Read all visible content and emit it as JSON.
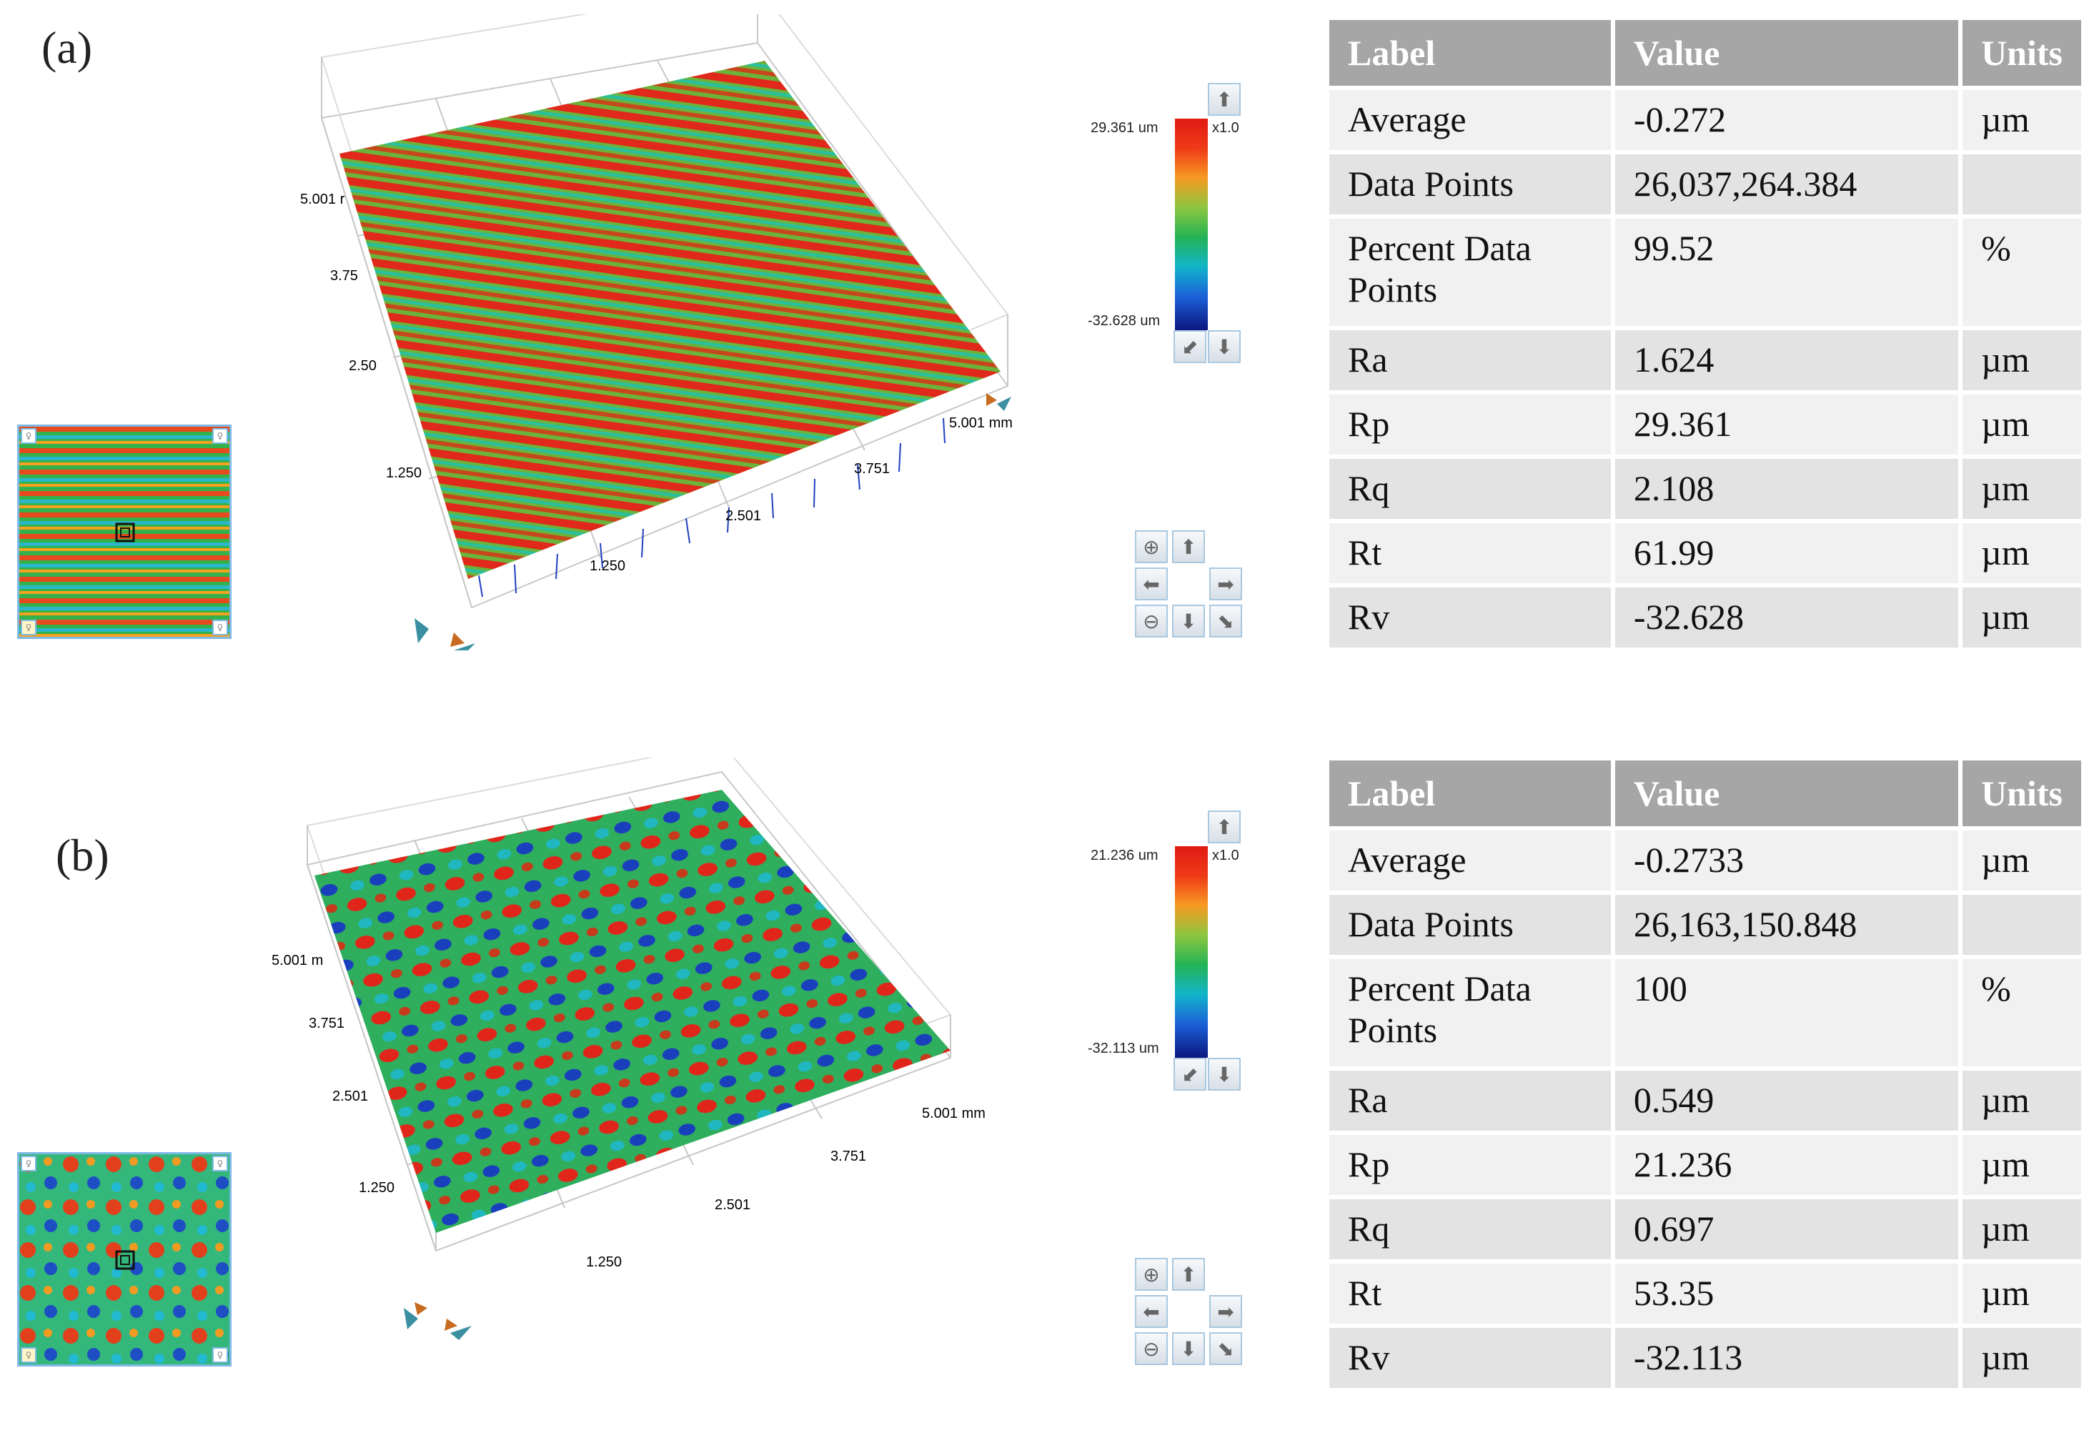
{
  "panels": [
    {
      "label": "(a)",
      "axis": {
        "y_ticks": [
          "5.001 r",
          "3.75",
          "2.50",
          "1.250"
        ],
        "x_ticks": [
          "1.250",
          "2.501",
          "3.751",
          "5.001 mm"
        ]
      },
      "colorbar": {
        "max": "29.361 um",
        "min": "-32.628 um",
        "scale": "x1.0"
      },
      "table": {
        "headers": [
          "Label",
          "Value",
          "Units"
        ],
        "rows": [
          {
            "label": "Average",
            "value": "-0.272",
            "units": "µm"
          },
          {
            "label": "Data Points",
            "value": "26,037,264.384",
            "units": ""
          },
          {
            "label": "Percent Data Points",
            "value": "99.52",
            "units": "%"
          },
          {
            "label": "Ra",
            "value": "1.624",
            "units": "µm"
          },
          {
            "label": "Rp",
            "value": "29.361",
            "units": "µm"
          },
          {
            "label": "Rq",
            "value": "2.108",
            "units": "µm"
          },
          {
            "label": "Rt",
            "value": "61.99",
            "units": "µm"
          },
          {
            "label": "Rv",
            "value": "-32.628",
            "units": "µm"
          }
        ]
      }
    },
    {
      "label": "(b)",
      "axis": {
        "y_ticks": [
          "5.001 m",
          "3.751",
          "2.501",
          "1.250"
        ],
        "x_ticks": [
          "1.250",
          "2.501",
          "3.751",
          "5.001 mm"
        ]
      },
      "colorbar": {
        "max": "21.236 um",
        "min": "-32.113 um",
        "scale": "x1.0"
      },
      "table": {
        "headers": [
          "Label",
          "Value",
          "Units"
        ],
        "rows": [
          {
            "label": "Average",
            "value": "-0.2733",
            "units": "µm"
          },
          {
            "label": "Data Points",
            "value": "26,163,150.848",
            "units": ""
          },
          {
            "label": "Percent Data Points",
            "value": "100",
            "units": "%"
          },
          {
            "label": "Ra",
            "value": "0.549",
            "units": "µm"
          },
          {
            "label": "Rp",
            "value": "21.236",
            "units": "µm"
          },
          {
            "label": "Rq",
            "value": "0.697",
            "units": "µm"
          },
          {
            "label": "Rt",
            "value": "53.35",
            "units": "µm"
          },
          {
            "label": "Rv",
            "value": "-32.113",
            "units": "µm"
          }
        ]
      }
    }
  ],
  "colors": {
    "red": "#e2231a",
    "green": "#2db34a",
    "blue": "#1b3fc0",
    "header_gray": "#a6a6a6"
  }
}
